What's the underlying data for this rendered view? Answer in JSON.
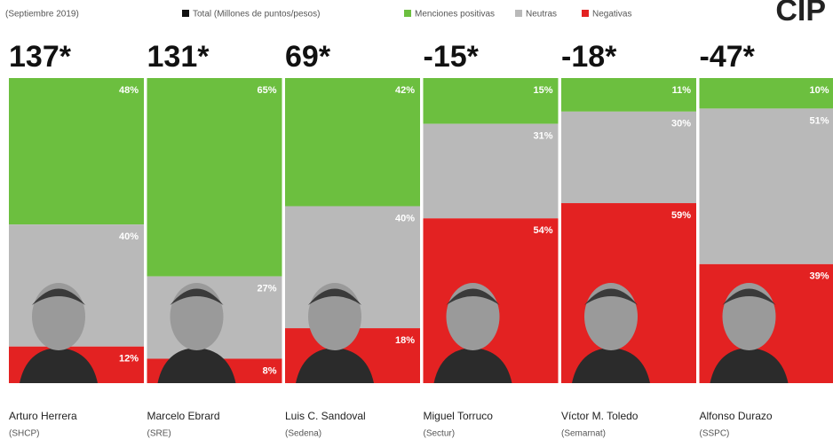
{
  "chart_data": {
    "type": "stacked_bar",
    "subtitle": "(Septiembre 2019)",
    "logo": "CIP",
    "categories": [
      "Arturo Herrera",
      "Marcelo Ebrard",
      "Luis C. Sandoval",
      "Miguel Torruco",
      "Víctor M. Toledo",
      "Alfonso Durazo"
    ],
    "subcategories": [
      "(SHCP)",
      "(SRE)",
      "(Sedena)",
      "(Sectur)",
      "(Semarnat)",
      "(SSPC)"
    ],
    "totals": {
      "name": "Total (Millones de puntos/pesos)",
      "color": "#111111",
      "values": [
        137,
        131,
        69,
        -15,
        -18,
        -47
      ],
      "value_labels": [
        "137*",
        "131*",
        "69*",
        "-15*",
        "-18*",
        "-47*"
      ]
    },
    "series": [
      {
        "name": "Menciones positivas",
        "color": "#6cbf3f",
        "values": [
          48,
          65,
          42,
          15,
          11,
          10
        ],
        "value_labels": [
          "48%",
          "65%",
          "42%",
          "15%",
          "11%",
          "10%"
        ]
      },
      {
        "name": "Neutras",
        "color": "#b9b9b9",
        "values": [
          40,
          27,
          40,
          31,
          30,
          51
        ],
        "value_labels": [
          "40%",
          "27%",
          "40%",
          "31%",
          "30%",
          "51%"
        ]
      },
      {
        "name": "Negativas",
        "color": "#e32222",
        "values": [
          12,
          8,
          18,
          54,
          59,
          39
        ],
        "value_labels": [
          "12%",
          "8%",
          "18%",
          "54%",
          "59%",
          "39%"
        ]
      }
    ],
    "ylim": [
      0,
      100
    ]
  }
}
